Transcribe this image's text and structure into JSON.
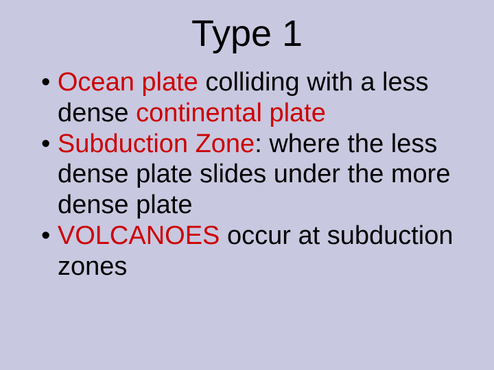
{
  "background_color": "#c8c8e0",
  "text_color": "#000000",
  "highlight_color": "#cc0000",
  "title": {
    "text": "Type 1",
    "fontsize": 54
  },
  "bullets": {
    "fontsize": 38,
    "items": [
      {
        "pre": "Ocean plate",
        "mid": " colliding with a less dense ",
        "hl2": "continental plate",
        "post": ""
      },
      {
        "pre": "Subduction Zone",
        "mid": ": where the less dense plate slides under the more dense plate",
        "hl2": "",
        "post": ""
      },
      {
        "pre": "VOLCANOES",
        "mid": " occur at subduction zones",
        "hl2": "",
        "post": ""
      }
    ]
  }
}
